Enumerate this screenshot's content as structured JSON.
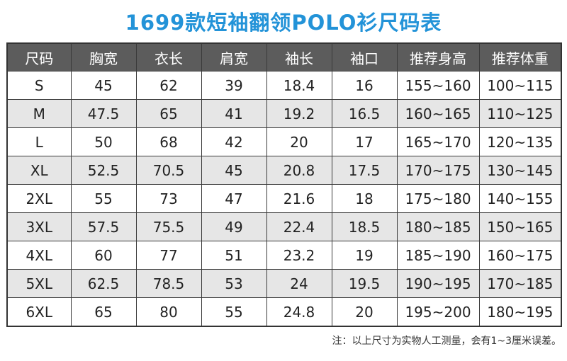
{
  "title": "1699款短袖翻领POLO衫尺码表",
  "table": {
    "headers": [
      "尺码",
      "胸宽",
      "衣长",
      "肩宽",
      "袖长",
      "袖口",
      "推荐身高",
      "推荐体重"
    ],
    "rows": [
      [
        "S",
        "45",
        "62",
        "39",
        "18.4",
        "16",
        "155~160",
        "100~115"
      ],
      [
        "M",
        "47.5",
        "65",
        "41",
        "19.2",
        "16.5",
        "160~165",
        "110~125"
      ],
      [
        "L",
        "50",
        "68",
        "42",
        "20",
        "17",
        "165~170",
        "120~135"
      ],
      [
        "XL",
        "52.5",
        "70.5",
        "45",
        "20.8",
        "17.5",
        "170~175",
        "130~145"
      ],
      [
        "2XL",
        "55",
        "73",
        "47",
        "21.6",
        "18",
        "175~180",
        "140~155"
      ],
      [
        "3XL",
        "57.5",
        "75.5",
        "49",
        "22.4",
        "18.5",
        "180~185",
        "150~165"
      ],
      [
        "4XL",
        "60",
        "77",
        "51",
        "23.2",
        "19",
        "185~190",
        "160~175"
      ],
      [
        "5XL",
        "62.5",
        "78.5",
        "53",
        "24",
        "19.5",
        "190~195",
        "170~185"
      ],
      [
        "6XL",
        "65",
        "80",
        "55",
        "24.8",
        "20",
        "195~200",
        "180~195"
      ]
    ]
  },
  "note": "注：以上尺寸为实物人工测量，会有1~3厘米误差。",
  "colors": {
    "title": "#2393d8",
    "header_bg": "#5c5c5c",
    "stripe_bg": "#e6e6e6"
  }
}
